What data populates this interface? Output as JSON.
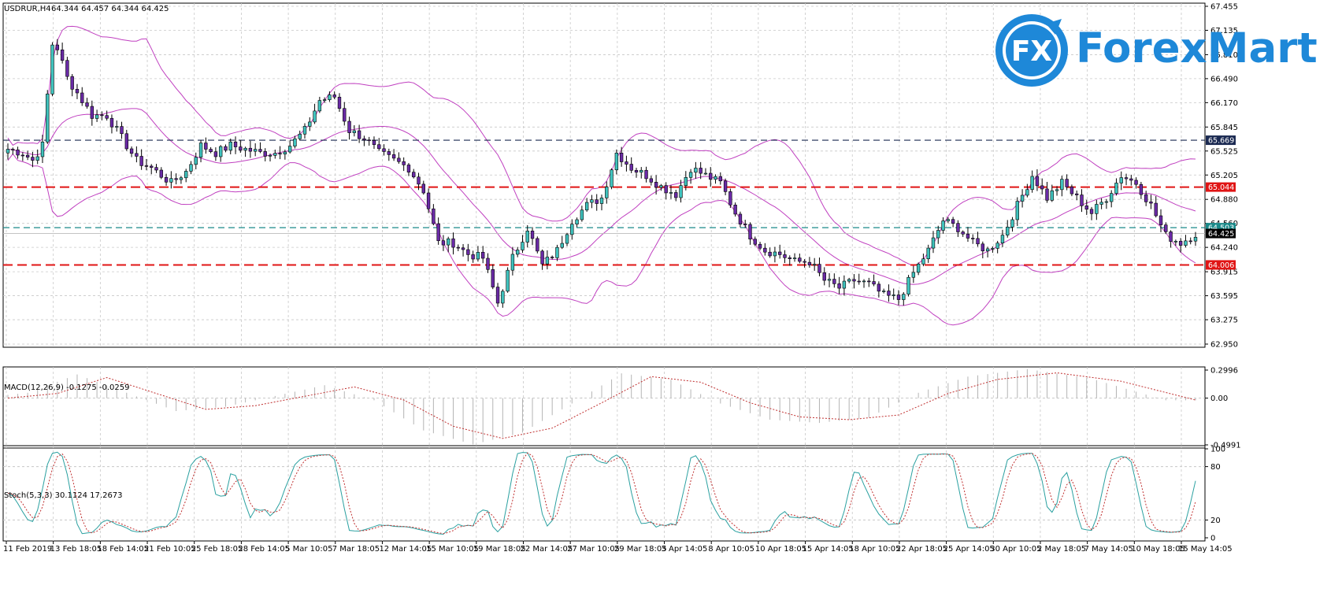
{
  "brand": {
    "logo_text": "ForexMart",
    "logo_mark": "FX",
    "color": "#1e88d8"
  },
  "chart_data": {
    "type": "candlestick",
    "symbol": "USDRUR,H4",
    "ohlc_label": "64.344 64.457 64.344 64.425",
    "price_ticks": [
      "67.455",
      "67.135",
      "66.810",
      "66.490",
      "66.170",
      "65.845",
      "65.525",
      "65.205",
      "64.880",
      "64.560",
      "64.240",
      "63.915",
      "63.595",
      "63.275",
      "62.950"
    ],
    "ylim": [
      62.95,
      67.455
    ],
    "levels": [
      {
        "value": 65.669,
        "label": "65.669",
        "style": "dashed",
        "color": "#1b2a52"
      },
      {
        "value": 65.044,
        "label": "65.044",
        "style": "dashed",
        "color": "#e01515"
      },
      {
        "value": 64.503,
        "label": "64.503",
        "style": "dashed",
        "color": "#1a8a8a"
      },
      {
        "value": 64.006,
        "label": "64.006",
        "style": "dashed",
        "color": "#e01515"
      }
    ],
    "current_price": {
      "value": 64.425,
      "label": "64.425"
    },
    "x_labels": [
      "11 Feb 2019",
      "13 Feb 18:05",
      "18 Feb 14:05",
      "21 Feb 10:05",
      "25 Feb 18:05",
      "28 Feb 14:05",
      "5 Mar 10:05",
      "7 Mar 18:05",
      "12 Mar 14:05",
      "15 Mar 10:05",
      "19 Mar 18:05",
      "22 Mar 14:05",
      "27 Mar 10:05",
      "29 Mar 18:05",
      "3 Apr 14:05",
      "8 Apr 10:05",
      "10 Apr 18:05",
      "15 Apr 14:05",
      "18 Apr 10:05",
      "22 Apr 18:05",
      "25 Apr 14:05",
      "30 Apr 10:05",
      "2 May 18:05",
      "7 May 14:05",
      "10 May 18:05",
      "15 May 14:05"
    ],
    "close_path": [
      [
        0,
        65.55
      ],
      [
        3,
        65.5
      ],
      [
        5,
        65.4
      ],
      [
        7,
        65.6
      ],
      [
        9,
        66.95
      ],
      [
        10,
        66.9
      ],
      [
        12,
        66.5
      ],
      [
        14,
        66.3
      ],
      [
        17,
        66.0
      ],
      [
        20,
        66.0
      ],
      [
        23,
        65.7
      ],
      [
        26,
        65.4
      ],
      [
        29,
        65.3
      ],
      [
        33,
        65.1
      ],
      [
        36,
        65.25
      ],
      [
        39,
        65.6
      ],
      [
        42,
        65.5
      ],
      [
        45,
        65.6
      ],
      [
        48,
        65.55
      ],
      [
        51,
        65.5
      ],
      [
        54,
        65.5
      ],
      [
        57,
        65.6
      ],
      [
        60,
        65.8
      ],
      [
        63,
        66.2
      ],
      [
        66,
        66.25
      ],
      [
        69,
        65.8
      ],
      [
        72,
        65.7
      ],
      [
        75,
        65.5
      ],
      [
        78,
        65.4
      ],
      [
        81,
        65.3
      ],
      [
        84,
        65.0
      ],
      [
        87,
        64.3
      ],
      [
        90,
        64.3
      ],
      [
        93,
        64.15
      ],
      [
        96,
        64.1
      ],
      [
        99,
        63.5
      ],
      [
        102,
        64.1
      ],
      [
        105,
        64.5
      ],
      [
        108,
        64.0
      ],
      [
        111,
        64.2
      ],
      [
        114,
        64.6
      ],
      [
        117,
        64.8
      ],
      [
        120,
        64.9
      ],
      [
        123,
        65.5
      ],
      [
        126,
        65.3
      ],
      [
        129,
        65.2
      ],
      [
        132,
        65.05
      ],
      [
        135,
        64.95
      ],
      [
        138,
        65.3
      ],
      [
        141,
        65.2
      ],
      [
        144,
        65.1
      ],
      [
        147,
        64.7
      ],
      [
        150,
        64.4
      ],
      [
        153,
        64.2
      ],
      [
        156,
        64.15
      ],
      [
        159,
        64.05
      ],
      [
        162,
        64.05
      ],
      [
        165,
        63.8
      ],
      [
        168,
        63.7
      ],
      [
        171,
        63.8
      ],
      [
        174,
        63.75
      ],
      [
        177,
        63.6
      ],
      [
        180,
        63.55
      ],
      [
        183,
        63.9
      ],
      [
        186,
        64.2
      ],
      [
        189,
        64.6
      ],
      [
        192,
        64.5
      ],
      [
        195,
        64.3
      ],
      [
        198,
        64.2
      ],
      [
        201,
        64.4
      ],
      [
        204,
        64.8
      ],
      [
        207,
        65.2
      ],
      [
        210,
        64.9
      ],
      [
        213,
        65.1
      ],
      [
        216,
        64.9
      ],
      [
        219,
        64.7
      ],
      [
        222,
        64.9
      ],
      [
        225,
        65.2
      ],
      [
        228,
        65.1
      ],
      [
        231,
        64.8
      ],
      [
        234,
        64.4
      ],
      [
        237,
        64.3
      ],
      [
        240,
        64.42
      ]
    ],
    "macd": {
      "label": "MACD(12,26,9) -0.1275 -0.0259",
      "ticks": [
        "0.2996",
        "0.00",
        "-0.4991"
      ],
      "ylim": [
        -0.4991,
        0.2996
      ],
      "signal_path": [
        [
          0,
          0.0
        ],
        [
          10,
          0.05
        ],
        [
          20,
          0.22
        ],
        [
          30,
          0.05
        ],
        [
          40,
          -0.12
        ],
        [
          50,
          -0.08
        ],
        [
          60,
          0.02
        ],
        [
          70,
          0.12
        ],
        [
          80,
          -0.02
        ],
        [
          90,
          -0.3
        ],
        [
          100,
          -0.43
        ],
        [
          110,
          -0.32
        ],
        [
          120,
          -0.05
        ],
        [
          130,
          0.23
        ],
        [
          140,
          0.17
        ],
        [
          150,
          -0.05
        ],
        [
          160,
          -0.2
        ],
        [
          170,
          -0.23
        ],
        [
          180,
          -0.18
        ],
        [
          190,
          0.05
        ],
        [
          200,
          0.2
        ],
        [
          212,
          0.27
        ],
        [
          225,
          0.18
        ],
        [
          240,
          -0.02
        ]
      ]
    },
    "stoch": {
      "label": "Stoch(5,3,3) 30.1124 17.2673",
      "ticks": [
        "100",
        "80",
        "20",
        "0"
      ],
      "ylim": [
        0,
        100
      ]
    }
  }
}
